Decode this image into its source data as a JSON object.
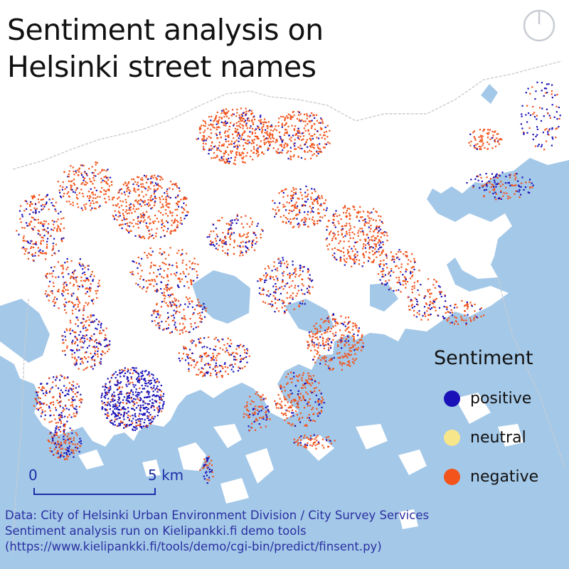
{
  "title_line1": "Sentiment analysis on",
  "title_line2": "Helsinki street names",
  "north_arrow_icon": "north-arrow-icon",
  "legend": {
    "title": "Sentiment",
    "items": [
      {
        "label": "positive",
        "color": "#1a12b8"
      },
      {
        "label": "neutral",
        "color": "#f7e68a"
      },
      {
        "label": "negative",
        "color": "#f2541b"
      }
    ]
  },
  "scale": {
    "start_label": "0",
    "end_label": "5 km"
  },
  "source_lines": [
    "Data: City of Helsinki Urban Environment Division / City Survey Services",
    "Sentiment analysis run on Kielipankki.fi demo tools",
    "(https://www.kielipankki.fi/tools/demo/cgi-bin/predict/finsent.py)"
  ],
  "colors": {
    "sea": "#a4c8e8",
    "land": "#ffffff",
    "positive": "#1a12b8",
    "negative": "#f2541b",
    "boundary": "#c8ccd2"
  }
}
